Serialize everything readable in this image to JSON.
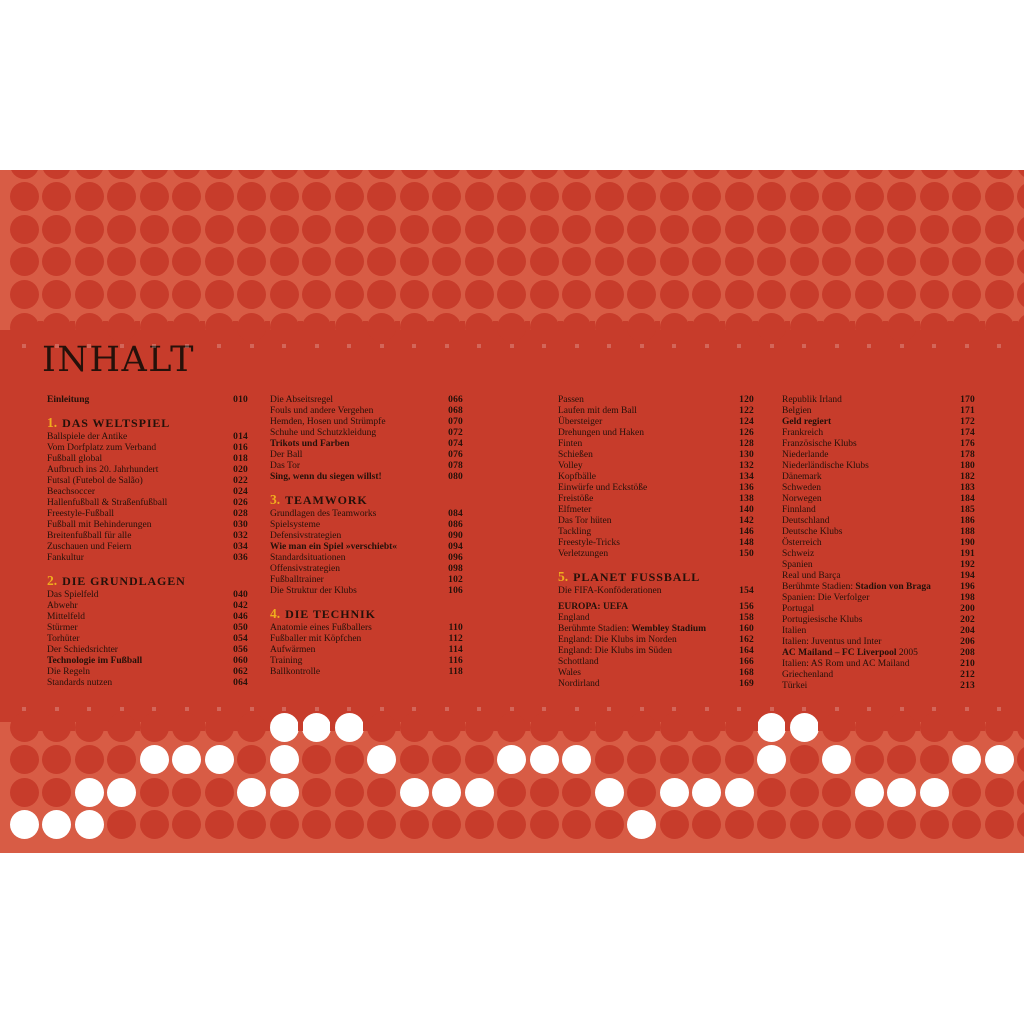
{
  "page": {
    "title": "INHALT"
  },
  "colors": {
    "paper": "#ffffff",
    "band": "#d85c45",
    "dark": "#c73c2b",
    "white_dot": "#ffffff",
    "square": "rgba(255,255,255,0.22)",
    "yellow": "#f0ad1e",
    "ink": "#25110a"
  },
  "decor": {
    "white_dots_bottom": {
      "hang": [
        8,
        9,
        10,
        23,
        24
      ],
      "row1": [
        4,
        5,
        6,
        8,
        11,
        15,
        16,
        17,
        23,
        25,
        29,
        30
      ],
      "row2": [
        2,
        3,
        7,
        8,
        12,
        13,
        14,
        18,
        20,
        21,
        22,
        26,
        27,
        28
      ],
      "row3": [
        0,
        1,
        2,
        19
      ]
    }
  },
  "columns": [
    [
      {
        "label": "Einleitung",
        "page": "010",
        "bold": true
      },
      {
        "num": "1.",
        "title": "DAS WELTSPIEL"
      },
      {
        "label": "Ballspiele der Antike",
        "page": "014"
      },
      {
        "label": "Vom Dorfplatz zum Verband",
        "page": "016"
      },
      {
        "label": "Fußball global",
        "page": "018"
      },
      {
        "label": "Aufbruch ins 20. Jahrhundert",
        "page": "020"
      },
      {
        "label": "Futsal (Futebol de Salão)",
        "page": "022"
      },
      {
        "label": "Beachsoccer",
        "page": "024"
      },
      {
        "label": "Hallenfußball & Straßenfußball",
        "page": "026"
      },
      {
        "label": "Freestyle-Fußball",
        "page": "028"
      },
      {
        "label": "Fußball mit Behinderungen",
        "page": "030"
      },
      {
        "label": "Breitenfußball für alle",
        "page": "032"
      },
      {
        "label": "Zuschauen und Feiern",
        "page": "034"
      },
      {
        "label": "Fankultur",
        "page": "036"
      },
      {
        "num": "2.",
        "title": "DIE GRUNDLAGEN"
      },
      {
        "label": "Das Spielfeld",
        "page": "040"
      },
      {
        "label": "Abwehr",
        "page": "042"
      },
      {
        "label": "Mittelfeld",
        "page": "046"
      },
      {
        "label": "Stürmer",
        "page": "050"
      },
      {
        "label": "Torhüter",
        "page": "054"
      },
      {
        "label": "Der Schiedsrichter",
        "page": "056"
      },
      {
        "label": "Technologie im Fußball",
        "page": "060",
        "bold": true
      },
      {
        "label": "Die Regeln",
        "page": "062"
      },
      {
        "label": "Standards nutzen",
        "page": "064"
      }
    ],
    [
      {
        "label": "Die Abseitsregel",
        "page": "066"
      },
      {
        "label": "Fouls und andere Vergehen",
        "page": "068"
      },
      {
        "label": "Hemden, Hosen und Strümpfe",
        "page": "070"
      },
      {
        "label": "Schuhe und Schutzkleidung",
        "page": "072"
      },
      {
        "label": "Trikots und Farben",
        "page": "074",
        "bold": true
      },
      {
        "label": "Der Ball",
        "page": "076"
      },
      {
        "label": "Das Tor",
        "page": "078"
      },
      {
        "label": "Sing, wenn du siegen willst!",
        "page": "080",
        "bold": true
      },
      {
        "num": "3.",
        "title": "TEAMWORK"
      },
      {
        "label": "Grundlagen des Teamworks",
        "page": "084"
      },
      {
        "label": "Spielsysteme",
        "page": "086"
      },
      {
        "label": "Defensivstrategien",
        "page": "090"
      },
      {
        "label": "Wie man ein Spiel »verschiebt«",
        "page": "094",
        "bold": true
      },
      {
        "label": "Standardsituationen",
        "page": "096"
      },
      {
        "label": "Offensivstrategien",
        "page": "098"
      },
      {
        "label": "Fußballtrainer",
        "page": "102"
      },
      {
        "label": "Die Struktur der Klubs",
        "page": "106"
      },
      {
        "num": "4.",
        "title": "DIE TECHNIK"
      },
      {
        "label": "Anatomie eines Fußballers",
        "page": "110"
      },
      {
        "label": "Fußballer mit Köpfchen",
        "page": "112"
      },
      {
        "label": "Aufwärmen",
        "page": "114"
      },
      {
        "label": "Training",
        "page": "116"
      },
      {
        "label": "Ballkontrolle",
        "page": "118"
      }
    ],
    [
      {
        "label": "Passen",
        "page": "120"
      },
      {
        "label": "Laufen mit dem Ball",
        "page": "122"
      },
      {
        "label": "Übersteiger",
        "page": "124"
      },
      {
        "label": "Drehungen und Haken",
        "page": "126"
      },
      {
        "label": "Finten",
        "page": "128"
      },
      {
        "label": "Schießen",
        "page": "130"
      },
      {
        "label": "Volley",
        "page": "132"
      },
      {
        "label": "Kopfbälle",
        "page": "134"
      },
      {
        "label": "Einwürfe und Eckstöße",
        "page": "136"
      },
      {
        "label": "Freistöße",
        "page": "138"
      },
      {
        "label": "Elfmeter",
        "page": "140"
      },
      {
        "label": "Das Tor hüten",
        "page": "142"
      },
      {
        "label": "Tackling",
        "page": "146"
      },
      {
        "label": "Freestyle-Tricks",
        "page": "148"
      },
      {
        "label": "Verletzungen",
        "page": "150"
      },
      {
        "num": "5.",
        "title": "PLANET FUSSBALL"
      },
      {
        "label": "Die FIFA-Konföderationen",
        "page": "154"
      },
      {
        "label": "EUROPA: UEFA",
        "page": "156",
        "bold": true,
        "gap": true
      },
      {
        "label": "England",
        "page": "158"
      },
      {
        "parts": [
          [
            "Berühmte Stadien: ",
            false
          ],
          [
            "Wembley Stadium",
            true
          ]
        ],
        "page": "160"
      },
      {
        "label": "England: Die Klubs im Norden",
        "page": "162"
      },
      {
        "label": "England: Die Klubs im Süden",
        "page": "164"
      },
      {
        "label": "Schottland",
        "page": "166"
      },
      {
        "label": "Wales",
        "page": "168"
      },
      {
        "label": "Nordirland",
        "page": "169"
      }
    ],
    [
      {
        "label": "Republik Irland",
        "page": "170"
      },
      {
        "label": "Belgien",
        "page": "171"
      },
      {
        "label": "Geld regiert",
        "page": "172",
        "bold": true
      },
      {
        "label": "Frankreich",
        "page": "174"
      },
      {
        "label": "Französische Klubs",
        "page": "176"
      },
      {
        "label": "Niederlande",
        "page": "178"
      },
      {
        "label": "Niederländische Klubs",
        "page": "180"
      },
      {
        "label": "Dänemark",
        "page": "182"
      },
      {
        "label": "Schweden",
        "page": "183"
      },
      {
        "label": "Norwegen",
        "page": "184"
      },
      {
        "label": "Finnland",
        "page": "185"
      },
      {
        "label": "Deutschland",
        "page": "186"
      },
      {
        "label": "Deutsche Klubs",
        "page": "188"
      },
      {
        "label": "Österreich",
        "page": "190"
      },
      {
        "label": "Schweiz",
        "page": "191"
      },
      {
        "label": "Spanien",
        "page": "192"
      },
      {
        "label": "Real und Barça",
        "page": "194"
      },
      {
        "parts": [
          [
            "Berühmte Stadien: ",
            false
          ],
          [
            "Stadion von Braga",
            true
          ]
        ],
        "page": "196"
      },
      {
        "label": "Spanien: Die Verfolger",
        "page": "198"
      },
      {
        "label": "Portugal",
        "page": "200"
      },
      {
        "label": "Portugiesische Klubs",
        "page": "202"
      },
      {
        "label": "Italien",
        "page": "204"
      },
      {
        "label": "Italien: Juventus und Inter",
        "page": "206"
      },
      {
        "parts": [
          [
            "AC Mailand – FC Liverpool",
            true
          ],
          [
            " 2005",
            false
          ]
        ],
        "page": "208"
      },
      {
        "label": "Italien: AS Rom und AC Mailand",
        "page": "210"
      },
      {
        "label": "Griechenland",
        "page": "212"
      },
      {
        "label": "Türkei",
        "page": "213"
      }
    ]
  ]
}
